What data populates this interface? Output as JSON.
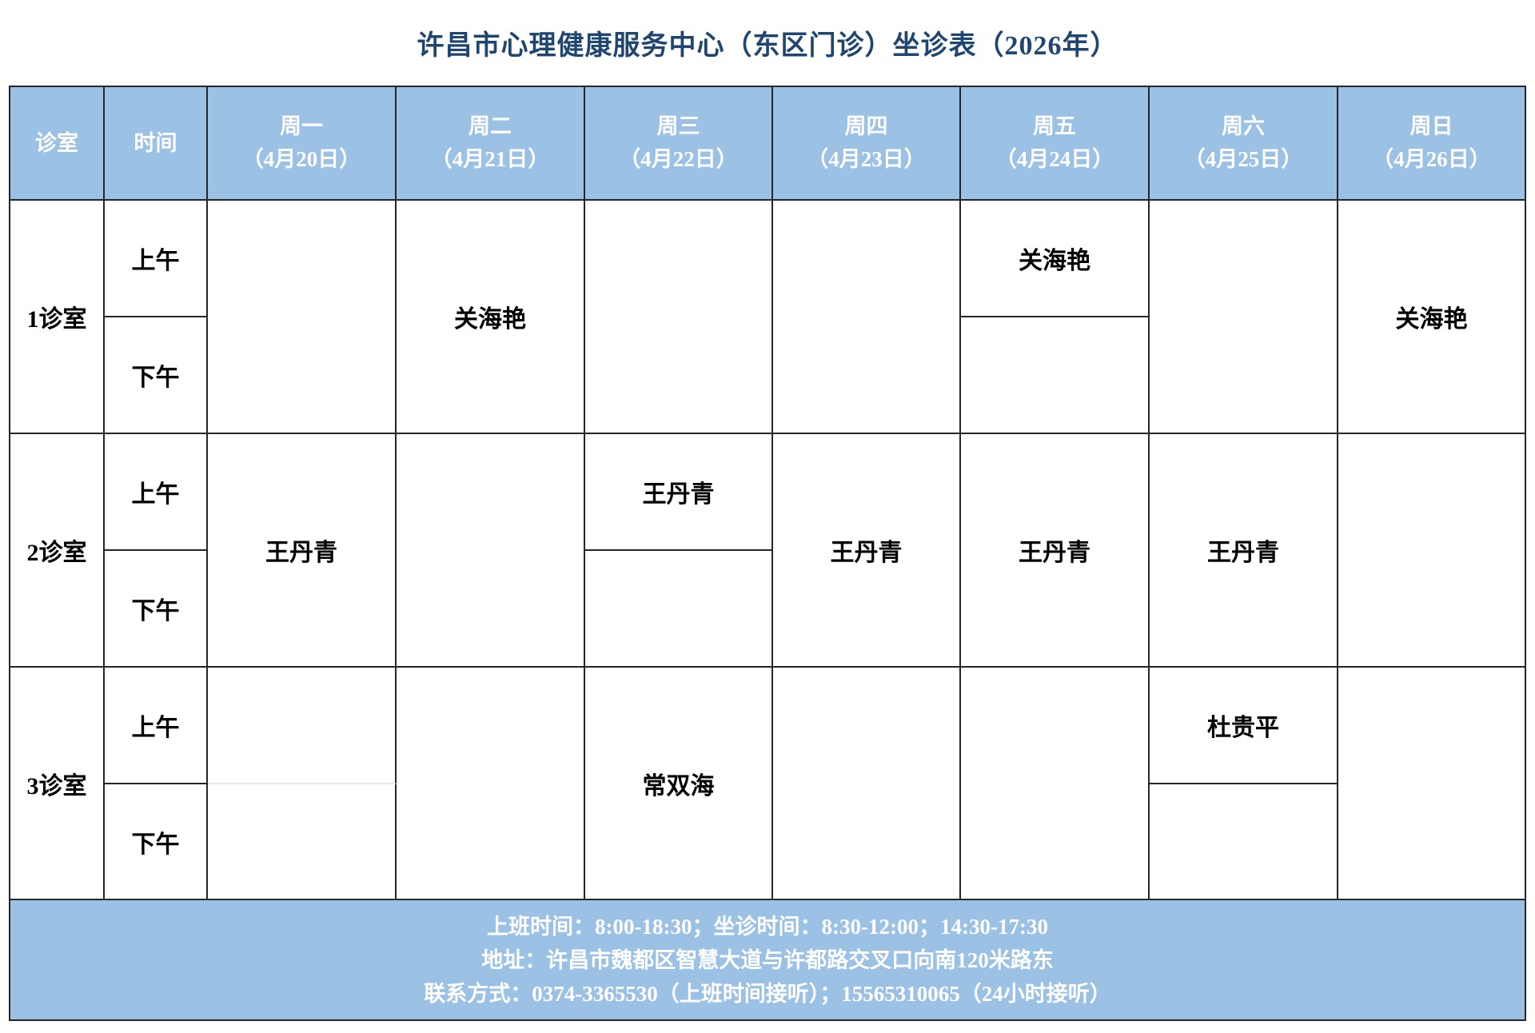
{
  "title": "许昌市心理健康服务中心（东区门诊）坐诊表（2026年）",
  "colors": {
    "header_footer_bg": "#9BC1E5",
    "title_text": "#1F4571",
    "grid_line": "#262626",
    "cell_text": "#000000",
    "header_footer_text": "#FFFFFF"
  },
  "table": {
    "header": {
      "room": "诊室",
      "time": "时间",
      "days": [
        {
          "weekday": "周一",
          "date": "（4月20日）"
        },
        {
          "weekday": "周二",
          "date": "（4月21日）"
        },
        {
          "weekday": "周三",
          "date": "（4月22日）"
        },
        {
          "weekday": "周四",
          "date": "（4月23日）"
        },
        {
          "weekday": "周五",
          "date": "（4月24日）"
        },
        {
          "weekday": "周六",
          "date": "（4月25日）"
        },
        {
          "weekday": "周日",
          "date": "（4月26日）"
        }
      ]
    },
    "time_labels": {
      "am": "上午",
      "pm": "下午"
    },
    "rows": [
      {
        "room": "1诊室",
        "cells": [
          {
            "type": "merged",
            "name": ""
          },
          {
            "type": "merged",
            "name": "关海艳"
          },
          {
            "type": "merged",
            "name": ""
          },
          {
            "type": "merged",
            "name": ""
          },
          {
            "type": "split",
            "am": "关海艳",
            "pm": ""
          },
          {
            "type": "merged",
            "name": ""
          },
          {
            "type": "merged",
            "name": "关海艳"
          }
        ]
      },
      {
        "room": "2诊室",
        "cells": [
          {
            "type": "merged",
            "name": "王丹青"
          },
          {
            "type": "merged",
            "name": ""
          },
          {
            "type": "split",
            "am": "王丹青",
            "pm": ""
          },
          {
            "type": "merged",
            "name": "王丹青"
          },
          {
            "type": "merged",
            "name": "王丹青"
          },
          {
            "type": "merged",
            "name": "王丹青"
          },
          {
            "type": "merged",
            "name": ""
          }
        ]
      },
      {
        "room": "3诊室",
        "cells": [
          {
            "type": "split-faint",
            "am": "",
            "pm": ""
          },
          {
            "type": "merged",
            "name": ""
          },
          {
            "type": "merged",
            "name": "常双海"
          },
          {
            "type": "merged",
            "name": ""
          },
          {
            "type": "merged",
            "name": ""
          },
          {
            "type": "split",
            "am": "杜贵平",
            "pm": ""
          },
          {
            "type": "merged",
            "name": ""
          }
        ]
      }
    ]
  },
  "footer": {
    "lines": [
      "上班时间：8:00-18:30；坐诊时间：8:30-12:00；14:30-17:30",
      "地址：许昌市魏都区智慧大道与许都路交叉口向南120米路东",
      "联系方式：0374-3365530（上班时间接听）；15565310065（24小时接听）"
    ]
  }
}
